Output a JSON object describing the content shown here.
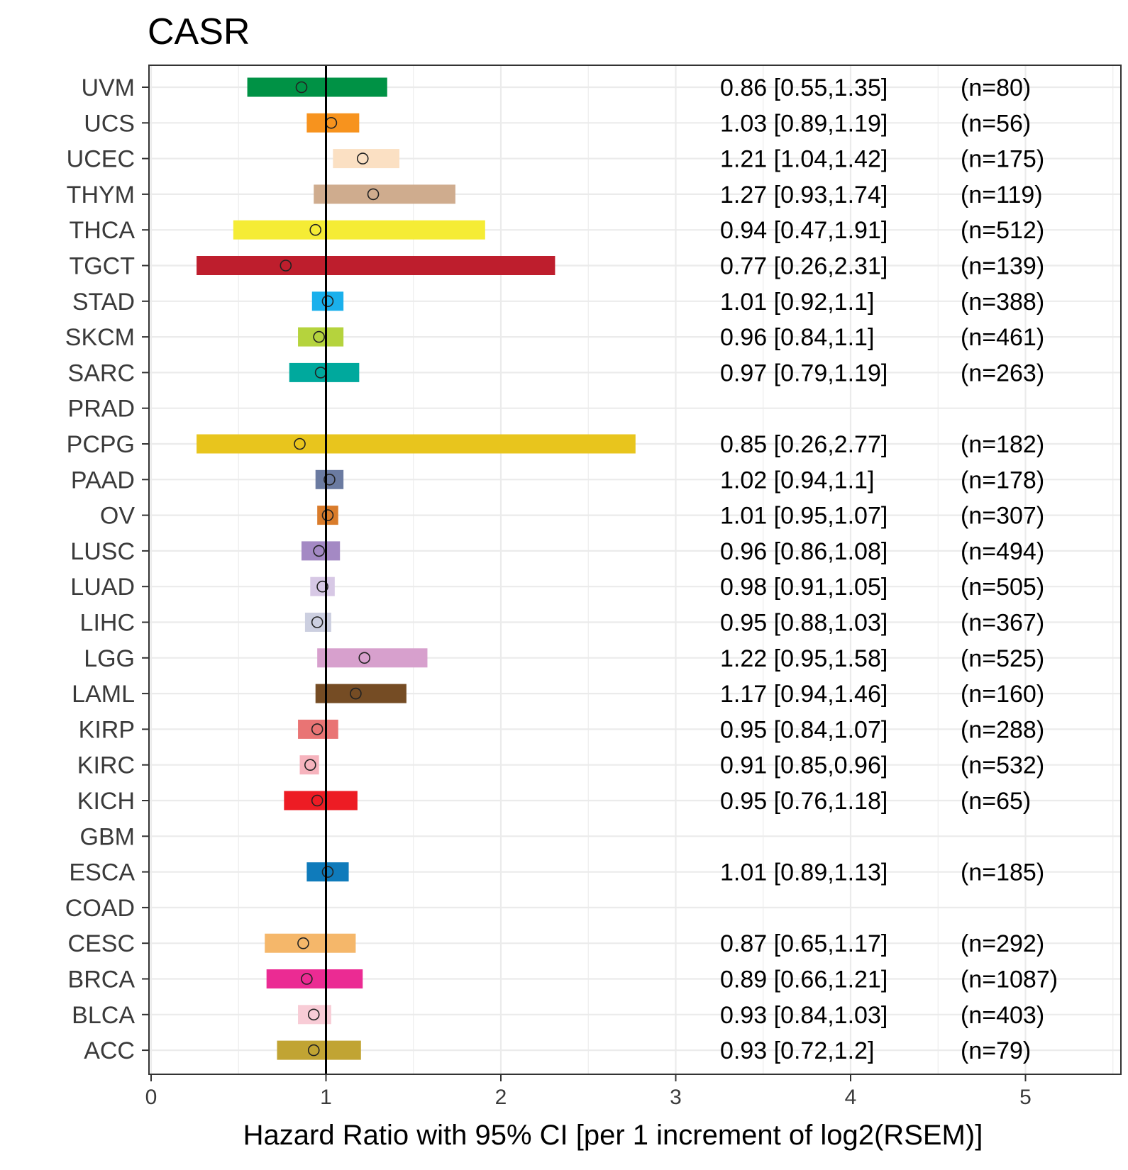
{
  "chart_data": {
    "type": "forest",
    "title": "CASR",
    "xlabel": "Hazard Ratio with 95% CI [per 1 increment of log2(RSEM)]",
    "ylabel": "",
    "xlim": [
      0,
      5.5
    ],
    "xticks": [
      "0",
      "1",
      "2",
      "3",
      "4",
      "5"
    ],
    "reference_line": 1,
    "grid": true,
    "rows": [
      {
        "label": "UVM",
        "hr": 0.86,
        "lo": 0.55,
        "hi": 1.35,
        "text": "0.86 [0.55,1.35]",
        "n": "(n=80)",
        "color": "#009245"
      },
      {
        "label": "UCS",
        "hr": 1.03,
        "lo": 0.89,
        "hi": 1.19,
        "text": "1.03 [0.89,1.19]",
        "n": "(n=56)",
        "color": "#f7931e"
      },
      {
        "label": "UCEC",
        "hr": 1.21,
        "lo": 1.04,
        "hi": 1.42,
        "text": "1.21 [1.04,1.42]",
        "n": "(n=175)",
        "color": "#fbe0c3"
      },
      {
        "label": "THYM",
        "hr": 1.27,
        "lo": 0.93,
        "hi": 1.74,
        "text": "1.27 [0.93,1.74]",
        "n": "(n=119)",
        "color": "#cfac8e"
      },
      {
        "label": "THCA",
        "hr": 0.94,
        "lo": 0.47,
        "hi": 1.91,
        "text": "0.94 [0.47,1.91]",
        "n": "(n=512)",
        "color": "#f5ec35"
      },
      {
        "label": "TGCT",
        "hr": 0.77,
        "lo": 0.26,
        "hi": 2.31,
        "text": "0.77 [0.26,2.31]",
        "n": "(n=139)",
        "color": "#be1e2d"
      },
      {
        "label": "STAD",
        "hr": 1.01,
        "lo": 0.92,
        "hi": 1.1,
        "text": "1.01 [0.92,1.1]",
        "n": "(n=388)",
        "color": "#1ab0ec"
      },
      {
        "label": "SKCM",
        "hr": 0.96,
        "lo": 0.84,
        "hi": 1.1,
        "text": "0.96 [0.84,1.1]",
        "n": "(n=461)",
        "color": "#b5d33d"
      },
      {
        "label": "SARC",
        "hr": 0.97,
        "lo": 0.79,
        "hi": 1.19,
        "text": "0.97 [0.79,1.19]",
        "n": "(n=263)",
        "color": "#00a99d"
      },
      {
        "label": "PRAD",
        "hr": null,
        "lo": null,
        "hi": null,
        "text": "",
        "n": "",
        "color": "#7e8b9c"
      },
      {
        "label": "PCPG",
        "hr": 0.85,
        "lo": 0.26,
        "hi": 2.77,
        "text": "0.85 [0.26,2.77]",
        "n": "(n=182)",
        "color": "#e8c51d"
      },
      {
        "label": "PAAD",
        "hr": 1.02,
        "lo": 0.94,
        "hi": 1.1,
        "text": "1.02 [0.94,1.1]",
        "n": "(n=178)",
        "color": "#6b7ba1"
      },
      {
        "label": "OV",
        "hr": 1.01,
        "lo": 0.95,
        "hi": 1.07,
        "text": "1.01 [0.95,1.07]",
        "n": "(n=307)",
        "color": "#d97c2b"
      },
      {
        "label": "LUSC",
        "hr": 0.96,
        "lo": 0.86,
        "hi": 1.08,
        "text": "0.96 [0.86,1.08]",
        "n": "(n=494)",
        "color": "#a489c4"
      },
      {
        "label": "LUAD",
        "hr": 0.98,
        "lo": 0.91,
        "hi": 1.05,
        "text": "0.98 [0.91,1.05]",
        "n": "(n=505)",
        "color": "#d7c8e5"
      },
      {
        "label": "LIHC",
        "hr": 0.95,
        "lo": 0.88,
        "hi": 1.03,
        "text": "0.95 [0.88,1.03]",
        "n": "(n=367)",
        "color": "#cccfe0"
      },
      {
        "label": "LGG",
        "hr": 1.22,
        "lo": 0.95,
        "hi": 1.58,
        "text": "1.22 [0.95,1.58]",
        "n": "(n=525)",
        "color": "#d7a0cd"
      },
      {
        "label": "LAML",
        "hr": 1.17,
        "lo": 0.94,
        "hi": 1.46,
        "text": "1.17 [0.94,1.46]",
        "n": "(n=160)",
        "color": "#754c24"
      },
      {
        "label": "KIRP",
        "hr": 0.95,
        "lo": 0.84,
        "hi": 1.07,
        "text": "0.95 [0.84,1.07]",
        "n": "(n=288)",
        "color": "#e97474"
      },
      {
        "label": "KIRC",
        "hr": 0.91,
        "lo": 0.85,
        "hi": 0.96,
        "text": "0.91 [0.85,0.96]",
        "n": "(n=532)",
        "color": "#f6b3bd"
      },
      {
        "label": "KICH",
        "hr": 0.95,
        "lo": 0.76,
        "hi": 1.18,
        "text": "0.95 [0.76,1.18]",
        "n": "(n=65)",
        "color": "#ed1c24"
      },
      {
        "label": "GBM",
        "hr": null,
        "lo": null,
        "hi": null,
        "text": "",
        "n": "",
        "color": "#999999"
      },
      {
        "label": "ESCA",
        "hr": 1.01,
        "lo": 0.89,
        "hi": 1.13,
        "text": "1.01 [0.89,1.13]",
        "n": "(n=185)",
        "color": "#0f7bbb"
      },
      {
        "label": "COAD",
        "hr": null,
        "lo": null,
        "hi": null,
        "text": "",
        "n": "",
        "color": "#999999"
      },
      {
        "label": "CESC",
        "hr": 0.87,
        "lo": 0.65,
        "hi": 1.17,
        "text": "0.87 [0.65,1.17]",
        "n": "(n=292)",
        "color": "#f5b76a"
      },
      {
        "label": "BRCA",
        "hr": 0.89,
        "lo": 0.66,
        "hi": 1.21,
        "text": "0.89 [0.66,1.21]",
        "n": "(n=1087)",
        "color": "#eb2b93"
      },
      {
        "label": "BLCA",
        "hr": 0.93,
        "lo": 0.84,
        "hi": 1.03,
        "text": "0.93 [0.84,1.03]",
        "n": "(n=403)",
        "color": "#f8ccd6"
      },
      {
        "label": "ACC",
        "hr": 0.93,
        "lo": 0.72,
        "hi": 1.2,
        "text": "0.93 [0.72,1.2]",
        "n": "(n=79)",
        "color": "#c1a433"
      }
    ]
  }
}
